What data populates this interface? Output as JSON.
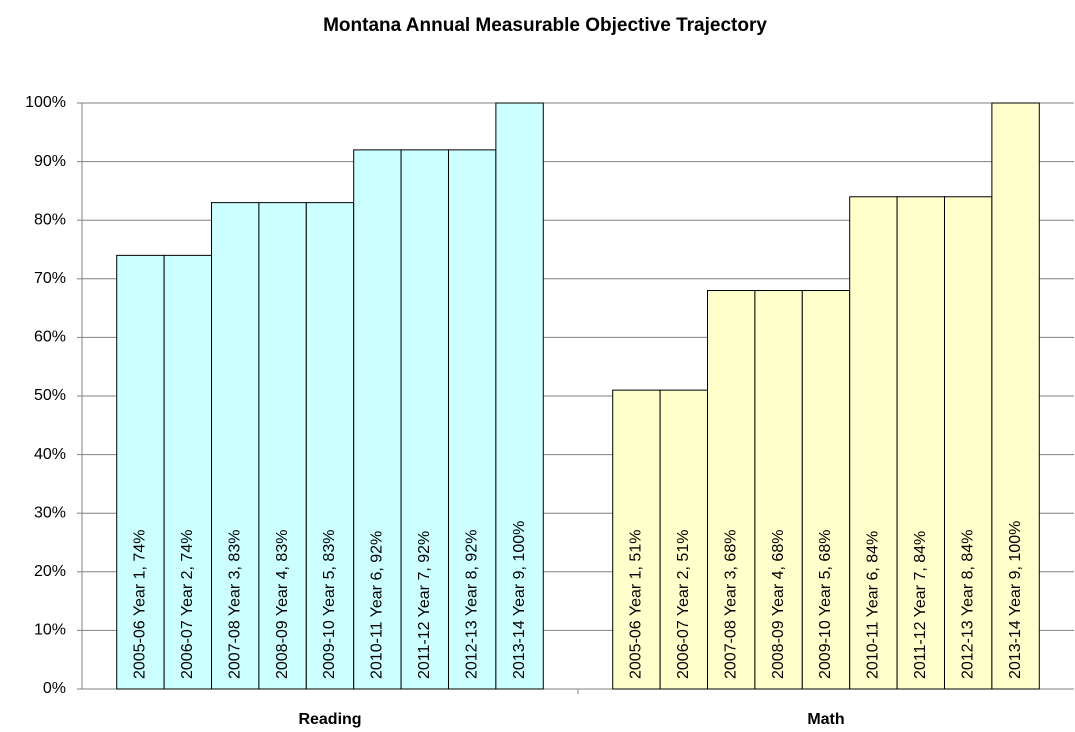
{
  "chart_data": {
    "type": "bar",
    "title": "Montana Annual Measurable Objective Trajectory",
    "categories": [
      "Reading",
      "Math"
    ],
    "colors": [
      "#ccffff",
      "#ffffcc"
    ],
    "series": [
      {
        "values": [
          74,
          51
        ],
        "value_labels": [
          "2005-06 Year 1, 74%",
          "2005-06 Year 1, 51%"
        ]
      },
      {
        "values": [
          74,
          51
        ],
        "value_labels": [
          "2006-07 Year 2, 74%",
          "2006-07 Year 2, 51%"
        ]
      },
      {
        "values": [
          83,
          68
        ],
        "value_labels": [
          "2007-08 Year 3, 83%",
          "2007-08 Year 3, 68%"
        ]
      },
      {
        "values": [
          83,
          68
        ],
        "value_labels": [
          "2008-09 Year 4, 83%",
          "2008-09 Year 4, 68%"
        ]
      },
      {
        "values": [
          83,
          68
        ],
        "value_labels": [
          "2009-10 Year 5, 83%",
          "2009-10 Year 5, 68%"
        ]
      },
      {
        "values": [
          92,
          84
        ],
        "value_labels": [
          "2010-11 Year 6, 92%",
          "2010-11 Year 6, 84%"
        ]
      },
      {
        "values": [
          92,
          84
        ],
        "value_labels": [
          "2011-12 Year 7, 92%",
          "2011-12 Year 7, 84%"
        ]
      },
      {
        "values": [
          92,
          84
        ],
        "value_labels": [
          "2012-13 Year 8, 92%",
          "2012-13 Year 8, 84%"
        ]
      },
      {
        "values": [
          100,
          100
        ],
        "value_labels": [
          "2013-14 Year 9, 100%",
          "2013-14 Year 9, 100%"
        ]
      }
    ],
    "ylim": [
      0,
      100
    ],
    "yticks": [
      {
        "value": 0,
        "label": "0%"
      },
      {
        "value": 10,
        "label": "10%"
      },
      {
        "value": 20,
        "label": "20%"
      },
      {
        "value": 30,
        "label": "30%"
      },
      {
        "value": 40,
        "label": "40%"
      },
      {
        "value": 50,
        "label": "50%"
      },
      {
        "value": 60,
        "label": "60%"
      },
      {
        "value": 70,
        "label": "70%"
      },
      {
        "value": 80,
        "label": "80%"
      },
      {
        "value": 90,
        "label": "90%"
      },
      {
        "value": 100,
        "label": "100%"
      }
    ],
    "grid": true
  }
}
